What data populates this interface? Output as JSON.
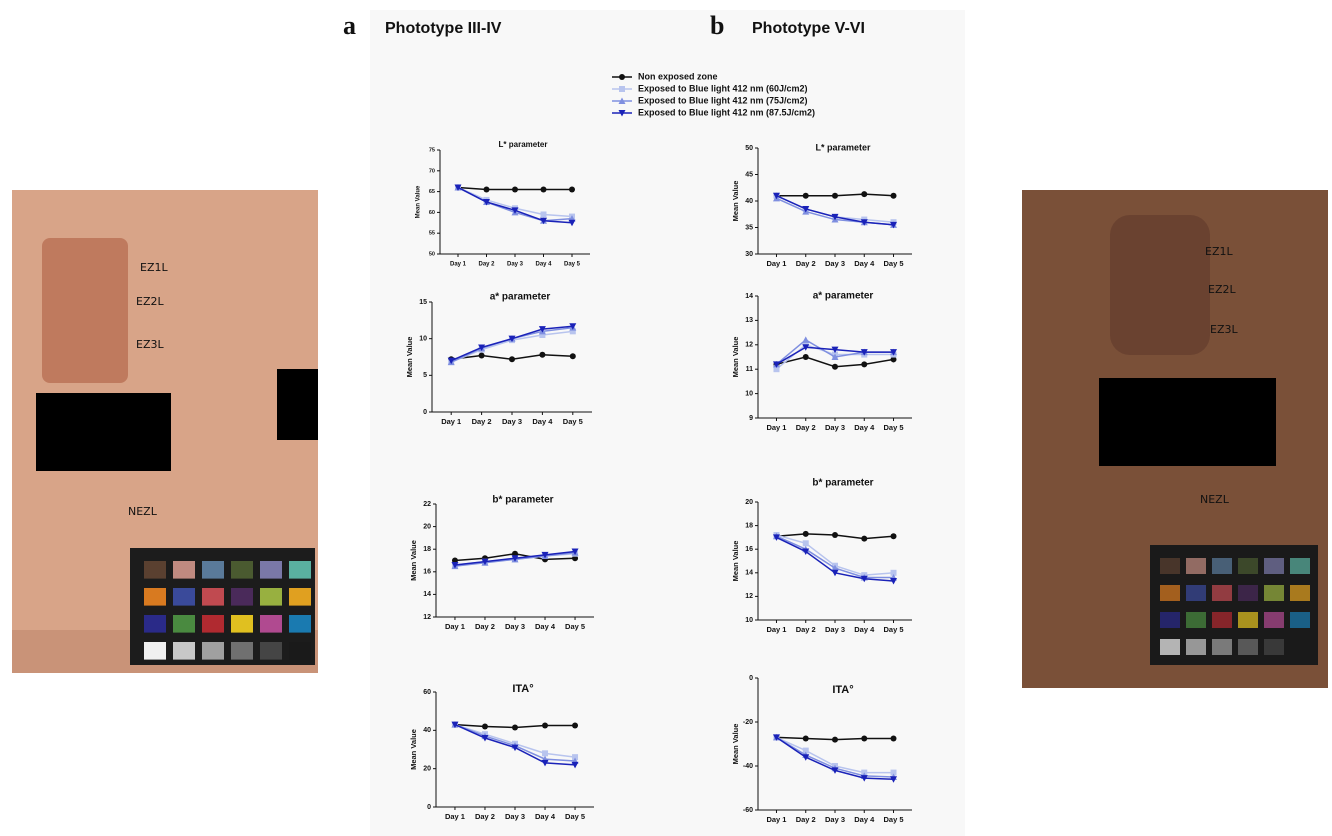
{
  "panels": [
    {
      "letter": "a",
      "title": "Phototype III-IV"
    },
    {
      "letter": "b",
      "title": "Phototype V-VI"
    }
  ],
  "left_photo": {
    "labels": [
      "EZ1L",
      "EZ2L",
      "EZ3L",
      "NEZL"
    ]
  },
  "right_photo": {
    "labels": [
      "EZ1L",
      "EZ2L",
      "EZ3L",
      "NEZL"
    ]
  },
  "chart_data": [
    {
      "type": "line",
      "title": "L* parameter",
      "y_label": "Mean Value",
      "categories": [
        "Day 1",
        "Day 2",
        "Day 3",
        "Day 4",
        "Day 5"
      ],
      "ylim": [
        50,
        75
      ],
      "yticks": [
        50,
        55,
        60,
        65,
        70,
        75
      ],
      "series": [
        {
          "name": "Non exposed zone",
          "color": "#111111",
          "marker": "circle",
          "values": [
            66,
            65.5,
            65.5,
            65.5,
            65.5
          ]
        },
        {
          "name": "Exposed to Blue light 412 nm (60J/cm2)",
          "color": "#b8c4ee",
          "marker": "square",
          "values": [
            66,
            63,
            61,
            59.5,
            59
          ]
        },
        {
          "name": "Exposed to Blue light 412 nm (75J/cm2)",
          "color": "#7f8fe0",
          "marker": "triangle-up",
          "values": [
            66,
            62.5,
            60,
            58,
            58.5
          ]
        },
        {
          "name": "Exposed to Blue light 412 nm (87.5J/cm2)",
          "color": "#1a22b8",
          "marker": "triangle-down",
          "values": [
            66,
            62.5,
            60.5,
            58,
            57.5
          ]
        }
      ]
    },
    {
      "type": "line",
      "title": "a* parameter",
      "y_label": "Mean Value",
      "categories": [
        "Day 1",
        "Day 2",
        "Day 3",
        "Day 4",
        "Day 5"
      ],
      "ylim": [
        0,
        15
      ],
      "yticks": [
        0,
        5,
        10,
        15
      ],
      "series": [
        {
          "name": "Non exposed zone",
          "color": "#111111",
          "marker": "circle",
          "values": [
            7.2,
            7.7,
            7.2,
            7.8,
            7.6
          ]
        },
        {
          "name": "Exposed to Blue light 412 nm (60J/cm2)",
          "color": "#b8c4ee",
          "marker": "square",
          "values": [
            6.8,
            8.5,
            9.8,
            10.5,
            11
          ]
        },
        {
          "name": "Exposed to Blue light 412 nm (75J/cm2)",
          "color": "#7f8fe0",
          "marker": "triangle-up",
          "values": [
            6.8,
            8.7,
            10,
            11,
            11.5
          ]
        },
        {
          "name": "Exposed to Blue light 412 nm (87.5J/cm2)",
          "color": "#1a22b8",
          "marker": "triangle-down",
          "values": [
            7,
            8.8,
            10,
            11.3,
            11.7
          ]
        }
      ]
    },
    {
      "type": "line",
      "title": "b* parameter",
      "y_label": "Mean Value",
      "categories": [
        "Day 1",
        "Day 2",
        "Day 3",
        "Day 4",
        "Day 5"
      ],
      "ylim": [
        12,
        22
      ],
      "yticks": [
        12,
        14,
        16,
        18,
        20,
        22
      ],
      "series": [
        {
          "name": "Non exposed zone",
          "color": "#111111",
          "marker": "circle",
          "values": [
            17,
            17.2,
            17.6,
            17.1,
            17.2
          ]
        },
        {
          "name": "Exposed to Blue light 412 nm (60J/cm2)",
          "color": "#b8c4ee",
          "marker": "square",
          "values": [
            16.6,
            16.9,
            17.1,
            17.4,
            17.6
          ]
        },
        {
          "name": "Exposed to Blue light 412 nm (75J/cm2)",
          "color": "#7f8fe0",
          "marker": "triangle-up",
          "values": [
            16.5,
            16.8,
            17.1,
            17.4,
            17.7
          ]
        },
        {
          "name": "Exposed to Blue light 412 nm (87.5J/cm2)",
          "color": "#1a22b8",
          "marker": "triangle-down",
          "values": [
            16.6,
            16.9,
            17.2,
            17.5,
            17.8
          ]
        }
      ]
    },
    {
      "type": "line",
      "title": "ITA°",
      "y_label": "Mean Value",
      "categories": [
        "Day 1",
        "Day 2",
        "Day 3",
        "Day 4",
        "Day 5"
      ],
      "ylim": [
        0,
        60
      ],
      "yticks": [
        0,
        20,
        40,
        60
      ],
      "series": [
        {
          "name": "Non exposed zone",
          "color": "#111111",
          "marker": "circle",
          "values": [
            43,
            42,
            41.5,
            42.5,
            42.5
          ]
        },
        {
          "name": "Exposed to Blue light 412 nm (60J/cm2)",
          "color": "#b8c4ee",
          "marker": "square",
          "values": [
            43,
            38,
            33,
            28,
            26
          ]
        },
        {
          "name": "Exposed to Blue light 412 nm (75J/cm2)",
          "color": "#7f8fe0",
          "marker": "triangle-up",
          "values": [
            43,
            37,
            32,
            25,
            24
          ]
        },
        {
          "name": "Exposed to Blue light 412 nm (87.5J/cm2)",
          "color": "#1a22b8",
          "marker": "triangle-down",
          "values": [
            43,
            36,
            31,
            23,
            22
          ]
        }
      ]
    },
    {
      "type": "line",
      "title": "L* parameter",
      "y_label": "Mean Value",
      "categories": [
        "Day 1",
        "Day 2",
        "Day 3",
        "Day 4",
        "Day 5"
      ],
      "ylim": [
        30,
        50
      ],
      "yticks": [
        30,
        35,
        40,
        45,
        50
      ],
      "series": [
        {
          "name": "Non exposed zone",
          "color": "#111111",
          "marker": "circle",
          "values": [
            41,
            41,
            41,
            41.3,
            41
          ]
        },
        {
          "name": "Exposed to Blue light 412 nm (60J/cm2)",
          "color": "#b8c4ee",
          "marker": "square",
          "values": [
            41,
            38.5,
            37,
            36.5,
            36
          ]
        },
        {
          "name": "Exposed to Blue light 412 nm (75J/cm2)",
          "color": "#7f8fe0",
          "marker": "triangle-up",
          "values": [
            40.5,
            38,
            36.5,
            36,
            35.5
          ]
        },
        {
          "name": "Exposed to Blue light 412 nm (87.5J/cm2)",
          "color": "#1a22b8",
          "marker": "triangle-down",
          "values": [
            41,
            38.5,
            37,
            36,
            35.5
          ]
        }
      ]
    },
    {
      "type": "line",
      "title": "a* parameter",
      "y_label": "Mean Value",
      "categories": [
        "Day 1",
        "Day 2",
        "Day 3",
        "Day 4",
        "Day 5"
      ],
      "ylim": [
        9,
        14
      ],
      "yticks": [
        9,
        10,
        11,
        12,
        13,
        14
      ],
      "series": [
        {
          "name": "Non exposed zone",
          "color": "#111111",
          "marker": "circle",
          "values": [
            11.2,
            11.5,
            11.1,
            11.2,
            11.4
          ]
        },
        {
          "name": "Exposed to Blue light 412 nm (60J/cm2)",
          "color": "#b8c4ee",
          "marker": "square",
          "values": [
            11,
            12,
            11.6,
            11.6,
            11.6
          ]
        },
        {
          "name": "Exposed to Blue light 412 nm (75J/cm2)",
          "color": "#7f8fe0",
          "marker": "triangle-up",
          "values": [
            11.2,
            12.2,
            11.5,
            11.7,
            11.7
          ]
        },
        {
          "name": "Exposed to Blue light 412 nm (87.5J/cm2)",
          "color": "#1a22b8",
          "marker": "triangle-down",
          "values": [
            11.2,
            11.9,
            11.8,
            11.7,
            11.7
          ]
        }
      ]
    },
    {
      "type": "line",
      "title": "b* parameter",
      "y_label": "Mean Value",
      "categories": [
        "Day 1",
        "Day 2",
        "Day 3",
        "Day 4",
        "Day 5"
      ],
      "ylim": [
        10,
        20
      ],
      "yticks": [
        10,
        12,
        14,
        16,
        18,
        20
      ],
      "series": [
        {
          "name": "Non exposed zone",
          "color": "#111111",
          "marker": "circle",
          "values": [
            17.1,
            17.3,
            17.2,
            16.9,
            17.1
          ]
        },
        {
          "name": "Exposed to Blue light 412 nm (60J/cm2)",
          "color": "#b8c4ee",
          "marker": "square",
          "values": [
            17.2,
            16.5,
            14.6,
            13.8,
            14
          ]
        },
        {
          "name": "Exposed to Blue light 412 nm (75J/cm2)",
          "color": "#7f8fe0",
          "marker": "triangle-up",
          "values": [
            17.1,
            16,
            14.4,
            13.6,
            13.6
          ]
        },
        {
          "name": "Exposed to Blue light 412 nm (87.5J/cm2)",
          "color": "#1a22b8",
          "marker": "triangle-down",
          "values": [
            17,
            15.8,
            14,
            13.5,
            13.3
          ]
        }
      ]
    },
    {
      "type": "line",
      "title": "ITA°",
      "y_label": "Mean Value",
      "categories": [
        "Day 1",
        "Day 2",
        "Day 3",
        "Day 4",
        "Day 5"
      ],
      "ylim": [
        -60,
        0
      ],
      "yticks": [
        -60,
        -40,
        -20,
        0
      ],
      "series": [
        {
          "name": "Non exposed zone",
          "color": "#111111",
          "marker": "circle",
          "values": [
            -27,
            -27.5,
            -28,
            -27.5,
            -27.5
          ]
        },
        {
          "name": "Exposed to Blue light 412 nm (60J/cm2)",
          "color": "#b8c4ee",
          "marker": "square",
          "values": [
            -27,
            -33,
            -40,
            -43,
            -43
          ]
        },
        {
          "name": "Exposed to Blue light 412 nm (75J/cm2)",
          "color": "#7f8fe0",
          "marker": "triangle-up",
          "values": [
            -27,
            -35,
            -41,
            -44.5,
            -45
          ]
        },
        {
          "name": "Exposed to Blue light 412 nm (87.5J/cm2)",
          "color": "#1a22b8",
          "marker": "triangle-down",
          "values": [
            -27,
            -36,
            -42,
            -45.5,
            -46
          ]
        }
      ]
    }
  ]
}
